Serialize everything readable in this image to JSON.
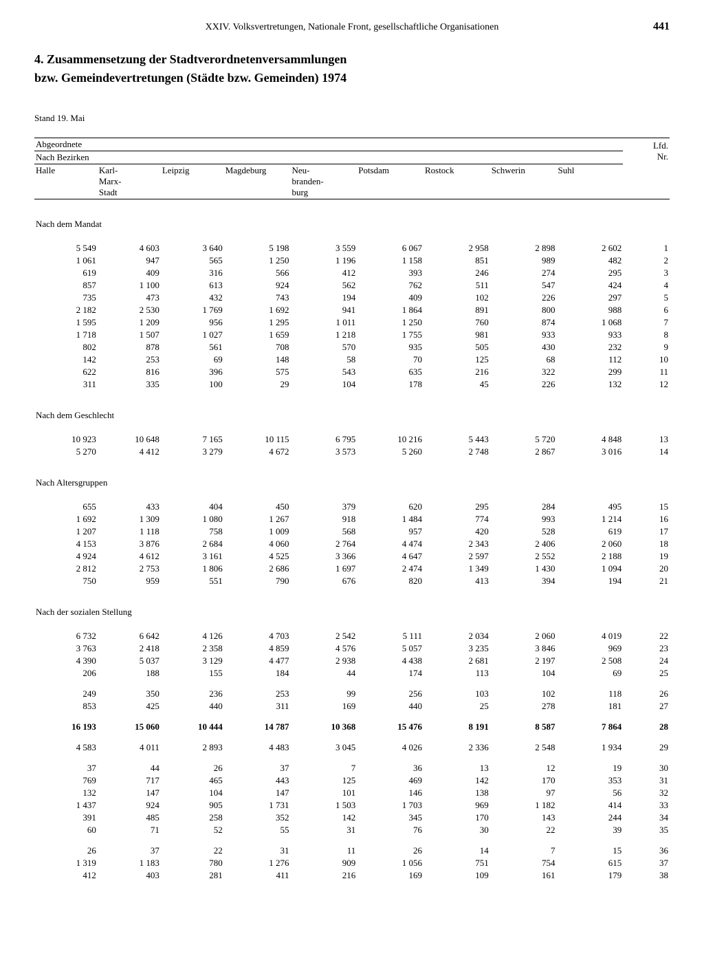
{
  "page": {
    "chapter": "XXIV. Volksvertretungen, Nationale Front, gesellschaftliche Organisationen",
    "page_number": "441",
    "title_line1": "4. Zusammensetzung der Stadtverordnetenversammlungen",
    "title_line2": "bzw. Gemeindevertretungen (Städte bzw. Gemeinden) 1974",
    "stand": "Stand 19. Mai"
  },
  "headers": {
    "abgeordnete": "Abgeordnete",
    "nach_bezirken": "Nach Bezirken",
    "lfd": "Lfd.\nNr.",
    "cols": [
      "Halle",
      "Karl-\nMarx-\nStadt",
      "Leipzig",
      "Magdeburg",
      "Neu-\nbranden-\nburg",
      "Potsdam",
      "Rostock",
      "Schwerin",
      "Suhl"
    ]
  },
  "sections": {
    "mandat": "Nach dem Mandat",
    "geschlecht": "Nach dem Geschlecht",
    "alter": "Nach Altersgruppen",
    "sozial": "Nach der sozialen Stellung"
  },
  "rows_mandat": [
    [
      "5 549",
      "4 603",
      "3 640",
      "5 198",
      "3 559",
      "6 067",
      "2 958",
      "2 898",
      "2 602",
      "1"
    ],
    [
      "1 061",
      "947",
      "565",
      "1 250",
      "1 196",
      "1 158",
      "851",
      "989",
      "482",
      "2"
    ],
    [
      "619",
      "409",
      "316",
      "566",
      "412",
      "393",
      "246",
      "274",
      "295",
      "3"
    ],
    [
      "857",
      "1 100",
      "613",
      "924",
      "562",
      "762",
      "511",
      "547",
      "424",
      "4"
    ],
    [
      "735",
      "473",
      "432",
      "743",
      "194",
      "409",
      "102",
      "226",
      "297",
      "5"
    ],
    [
      "2 182",
      "2 530",
      "1 769",
      "1 692",
      "941",
      "1 864",
      "891",
      "800",
      "988",
      "6"
    ],
    [
      "1 595",
      "1 209",
      "956",
      "1 295",
      "1 011",
      "1 250",
      "760",
      "874",
      "1 068",
      "7"
    ],
    [
      "1 718",
      "1 507",
      "1 027",
      "1 659",
      "1 218",
      "1 755",
      "981",
      "933",
      "933",
      "8"
    ],
    [
      "802",
      "878",
      "561",
      "708",
      "570",
      "935",
      "505",
      "430",
      "232",
      "9"
    ],
    [
      "142",
      "253",
      "69",
      "148",
      "58",
      "70",
      "125",
      "68",
      "112",
      "10"
    ],
    [
      "622",
      "816",
      "396",
      "575",
      "543",
      "635",
      "216",
      "322",
      "299",
      "11"
    ],
    [
      "311",
      "335",
      "100",
      "29",
      "104",
      "178",
      "45",
      "226",
      "132",
      "12"
    ]
  ],
  "rows_geschlecht": [
    [
      "10 923",
      "10 648",
      "7 165",
      "10 115",
      "6 795",
      "10 216",
      "5 443",
      "5 720",
      "4 848",
      "13"
    ],
    [
      "5 270",
      "4 412",
      "3 279",
      "4 672",
      "3 573",
      "5 260",
      "2 748",
      "2 867",
      "3 016",
      "14"
    ]
  ],
  "rows_alter": [
    [
      "655",
      "433",
      "404",
      "450",
      "379",
      "620",
      "295",
      "284",
      "495",
      "15"
    ],
    [
      "1 692",
      "1 309",
      "1 080",
      "1 267",
      "918",
      "1 484",
      "774",
      "993",
      "1 214",
      "16"
    ],
    [
      "1 207",
      "1 118",
      "758",
      "1 009",
      "568",
      "957",
      "420",
      "528",
      "619",
      "17"
    ],
    [
      "4 153",
      "3 876",
      "2 684",
      "4 060",
      "2 764",
      "4 474",
      "2 343",
      "2 406",
      "2 060",
      "18"
    ],
    [
      "4 924",
      "4 612",
      "3 161",
      "4 525",
      "3 366",
      "4 647",
      "2 597",
      "2 552",
      "2 188",
      "19"
    ],
    [
      "2 812",
      "2 753",
      "1 806",
      "2 686",
      "1 697",
      "2 474",
      "1 349",
      "1 430",
      "1 094",
      "20"
    ],
    [
      "750",
      "959",
      "551",
      "790",
      "676",
      "820",
      "413",
      "394",
      "194",
      "21"
    ]
  ],
  "rows_sozial_a": [
    [
      "6 732",
      "6 642",
      "4 126",
      "4 703",
      "2 542",
      "5 111",
      "2 034",
      "2 060",
      "4 019",
      "22"
    ],
    [
      "3 763",
      "2 418",
      "2 358",
      "4 859",
      "4 576",
      "5 057",
      "3 235",
      "3 846",
      "969",
      "23"
    ],
    [
      "4 390",
      "5 037",
      "3 129",
      "4 477",
      "2 938",
      "4 438",
      "2 681",
      "2 197",
      "2 508",
      "24"
    ],
    [
      "206",
      "188",
      "155",
      "184",
      "44",
      "174",
      "113",
      "104",
      "69",
      "25"
    ]
  ],
  "rows_sozial_b": [
    [
      "249",
      "350",
      "236",
      "253",
      "99",
      "256",
      "103",
      "102",
      "118",
      "26"
    ],
    [
      "853",
      "425",
      "440",
      "311",
      "169",
      "440",
      "25",
      "278",
      "181",
      "27"
    ]
  ],
  "rows_sozial_bold": [
    [
      "16 193",
      "15 060",
      "10 444",
      "14 787",
      "10 368",
      "15 476",
      "8 191",
      "8 587",
      "7 864",
      "28"
    ]
  ],
  "rows_sozial_c": [
    [
      "4 583",
      "4 011",
      "2 893",
      "4 483",
      "3 045",
      "4 026",
      "2 336",
      "2 548",
      "1 934",
      "29"
    ]
  ],
  "rows_sozial_d": [
    [
      "37",
      "44",
      "26",
      "37",
      "7",
      "36",
      "13",
      "12",
      "19",
      "30"
    ],
    [
      "769",
      "717",
      "465",
      "443",
      "125",
      "469",
      "142",
      "170",
      "353",
      "31"
    ],
    [
      "132",
      "147",
      "104",
      "147",
      "101",
      "146",
      "138",
      "97",
      "56",
      "32"
    ],
    [
      "1 437",
      "924",
      "905",
      "1 731",
      "1 503",
      "1 703",
      "969",
      "1 182",
      "414",
      "33"
    ],
    [
      "391",
      "485",
      "258",
      "352",
      "142",
      "345",
      "170",
      "143",
      "244",
      "34"
    ],
    [
      "60",
      "71",
      "52",
      "55",
      "31",
      "76",
      "30",
      "22",
      "39",
      "35"
    ]
  ],
  "rows_sozial_e": [
    [
      "26",
      "37",
      "22",
      "31",
      "11",
      "26",
      "14",
      "7",
      "15",
      "36"
    ],
    [
      "1 319",
      "1 183",
      "780",
      "1 276",
      "909",
      "1 056",
      "751",
      "754",
      "615",
      "37"
    ],
    [
      "412",
      "403",
      "281",
      "411",
      "216",
      "169",
      "109",
      "161",
      "179",
      "38"
    ]
  ]
}
